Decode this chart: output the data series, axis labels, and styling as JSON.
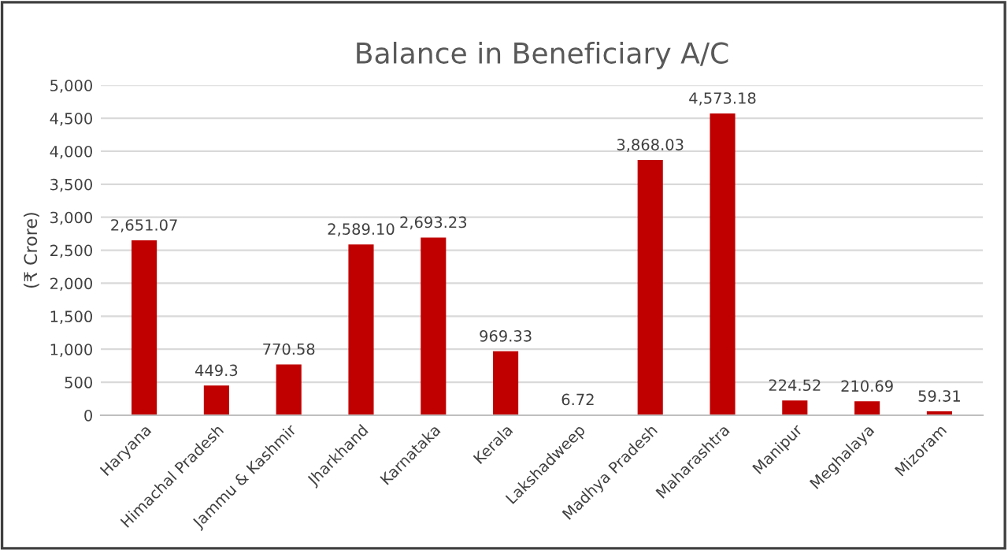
{
  "chart_data": {
    "type": "bar",
    "title": "Balance in Beneficiary A/C",
    "ylabel": "(₹ Crore)",
    "categories": [
      "Haryana",
      "Himachal Pradesh",
      "Jammu & Kashmir",
      "Jharkhand",
      "Karnataka",
      "Kerala",
      "Lakshadweep",
      "Madhya Pradesh",
      "Maharashtra",
      "Manipur",
      "Meghalaya",
      "Mizoram"
    ],
    "values": [
      2651.07,
      449.3,
      770.58,
      2589.1,
      2693.23,
      969.33,
      6.72,
      3868.03,
      4573.18,
      224.52,
      210.69,
      59.31
    ],
    "value_labels": [
      "2,651.07",
      "449.3",
      "770.58",
      "2,589.10",
      "2,693.23",
      "969.33",
      "6.72",
      "3,868.03",
      "4,573.18",
      "224.52",
      "210.69",
      "59.31"
    ],
    "color": "#c00000",
    "ylim": [
      0,
      5000
    ],
    "yticks": [
      0,
      {
        "value": 500,
        "label": "500"
      },
      {
        "value": 1000,
        "label": "1,000"
      },
      {
        "value": 1500,
        "label": "1,500"
      },
      {
        "value": 2000,
        "label": "2,000"
      },
      {
        "value": 2500,
        "label": "2,500"
      },
      {
        "value": 3000,
        "label": "3,000"
      },
      {
        "value": 3500,
        "label": "3,500"
      },
      {
        "value": 4000,
        "label": "4,000"
      },
      {
        "value": 4500,
        "label": "4,500"
      },
      {
        "value": 5000,
        "label": "5,000"
      }
    ],
    "grid": "y",
    "legend": false
  }
}
